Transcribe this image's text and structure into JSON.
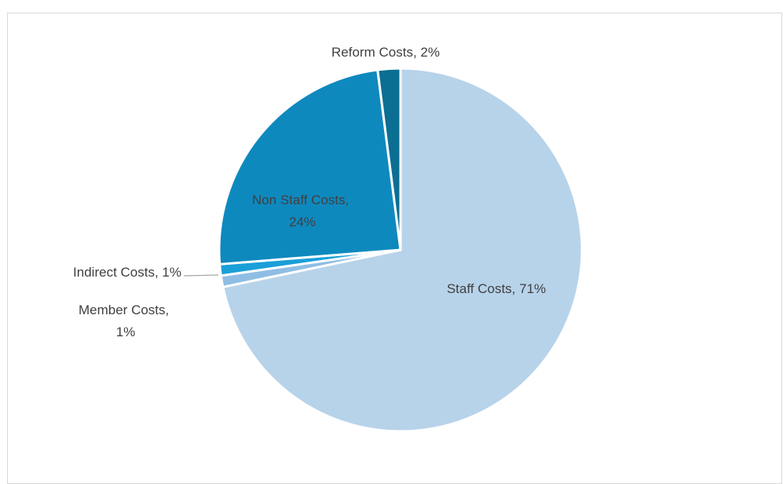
{
  "chart_data": {
    "type": "pie",
    "title": "",
    "legend": "none",
    "start_angle_deg": 0,
    "direction": "clockwise",
    "slices": [
      {
        "name": "Staff Costs",
        "value": 71,
        "label": "Staff Costs, 71%",
        "color": "#b7d3ea"
      },
      {
        "name": "Member Costs",
        "value": 1,
        "label": "Member Costs, 1%",
        "color": "#8fbde4"
      },
      {
        "name": "Indirect Costs",
        "value": 1,
        "label": "Indirect Costs, 1%",
        "color": "#1a9fd8"
      },
      {
        "name": "Non Staff Costs",
        "value": 24,
        "label": "Non Staff Costs, 24%",
        "color": "#0e89be"
      },
      {
        "name": "Reform Costs",
        "value": 2,
        "label": "Reform Costs, 2%",
        "color": "#0b6e93"
      }
    ]
  }
}
